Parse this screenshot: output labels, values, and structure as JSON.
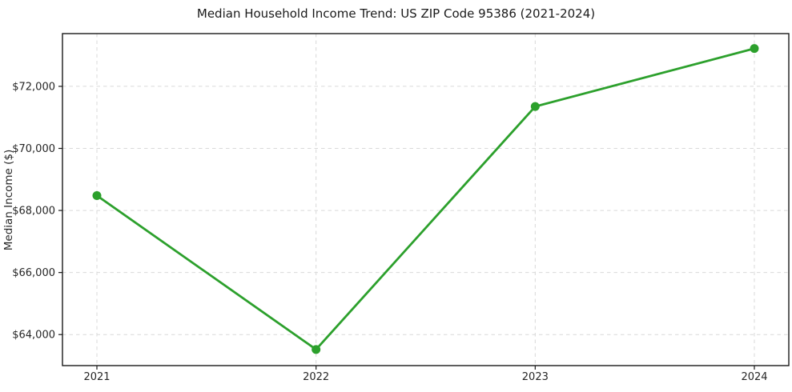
{
  "chart": {
    "title": "Median Household Income Trend: US ZIP Code 95386 (2021-2024)",
    "ylabel": "Median Income ($)"
  },
  "chart_data": {
    "type": "line",
    "title": "Median Household Income Trend: US ZIP Code 95386 (2021-2024)",
    "xlabel": "",
    "ylabel": "Median Income ($)",
    "categories": [
      "2021",
      "2022",
      "2023",
      "2024"
    ],
    "series": [
      {
        "name": "Median Household Income",
        "values": [
          68480,
          63520,
          71350,
          73220
        ]
      }
    ],
    "ylim": [
      63000,
      73700
    ],
    "yticks": [
      64000,
      66000,
      68000,
      70000,
      72000
    ],
    "ytick_labels": [
      "$64,000",
      "$66,000",
      "$68,000",
      "$70,000",
      "$72,000"
    ],
    "grid": true,
    "grid_style": "dashed",
    "legend": false,
    "line_color": "#2ca02c",
    "marker": "circle",
    "grid_color": "#d9d9d9",
    "spine_color": "#1a1a1a",
    "text_color": "#262626"
  }
}
